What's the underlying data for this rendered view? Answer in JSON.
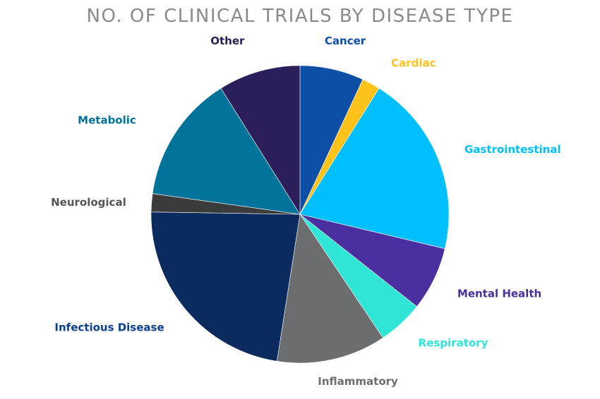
{
  "chart_data": {
    "type": "pie",
    "title": "NO. OF CLINICAL TRIALS BY DISEASE TYPE",
    "slices": [
      {
        "label": "Cancer",
        "value": 7,
        "color": "#0d4ea6"
      },
      {
        "label": "Cardiac",
        "value": 2,
        "color": "#ffc21a"
      },
      {
        "label": "Gastrointestinal",
        "value": 20,
        "color": "#00bfff"
      },
      {
        "label": "Mental Health",
        "value": 7,
        "color": "#4a2fa0"
      },
      {
        "label": "Respiratory",
        "value": 5,
        "color": "#2ee5d8"
      },
      {
        "label": "Inflammatory",
        "value": 12,
        "color": "#6b6d6e"
      },
      {
        "label": "Infectious Disease",
        "value": 23,
        "color": "#0b2a5e"
      },
      {
        "label": "Neurological",
        "value": 2,
        "color": "#3b3b3b"
      },
      {
        "label": "Metabolic",
        "value": 14,
        "color": "#00739a"
      },
      {
        "label": "Other",
        "value": 9,
        "color": "#2b1e5a"
      }
    ],
    "label_colors": {
      "Cancer": "#0d4ea6",
      "Cardiac": "#ffc21a",
      "Gastrointestinal": "#00bfff",
      "Mental Health": "#4a2fa0",
      "Respiratory": "#2ee5d8",
      "Inflammatory": "#6b6d6e",
      "Infectious Disease": "#0b3f8f",
      "Neurological": "#555555",
      "Metabolic": "#00739a",
      "Other": "#2b1e5a"
    },
    "legend": "none",
    "start_angle": "12 o'clock",
    "direction": "clockwise"
  }
}
